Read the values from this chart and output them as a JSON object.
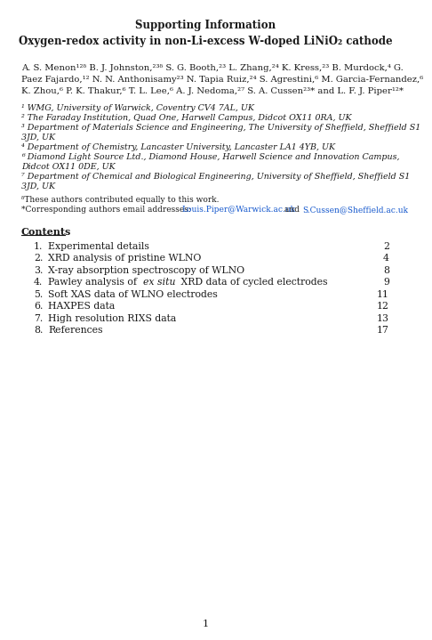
{
  "title": "Supporting Information",
  "subtitle": "Oxygen-redox activity in non-Li-excess W-doped LiNiO₂ cathode",
  "author_line1": "A. S. Menon¹²ᵟ B. J. Johnston,²³ᵟ S. G. Booth,²³ L. Zhang,²⁴ K. Kress,²³ B. Murdock,⁴ G.",
  "author_line2": "Paez Fajardo,¹² N. N. Anthonisamy²³ N. Tapia Ruiz,²⁴ S. Agrestini,⁶ M. Garcia-Fernandez,⁶",
  "author_line3": "K. Zhou,⁶ P. K. Thakur,⁶ T. L. Lee,⁶ A. J. Nedoma,²⁷ S. A. Cussen²³* and L. F. J. Piper¹²*",
  "aff1": "¹ WMG, University of Warwick, Coventry CV4 7AL, UK",
  "aff2": "² The Faraday Institution, Quad One, Harwell Campus, Didcot OX11 0RA, UK",
  "aff3a": "³ Department of Materials Science and Engineering, The University of Sheffield, Sheffield S1",
  "aff3b": "3JD, UK",
  "aff4": "⁴ Department of Chemistry, Lancaster University, Lancaster LA1 4YB, UK",
  "aff6a": "⁶ Diamond Light Source Ltd., Diamond House, Harwell Science and Innovation Campus,",
  "aff6b": "Didcot OX11 0DE, UK",
  "aff7a": "⁷ Department of Chemical and Biological Engineering, University of Sheffield, Sheffield S1",
  "aff7b": "3JD, UK",
  "footnote1": "ᵟThese authors contributed equally to this work.",
  "footnote2_pre": "*Corresponding authors email addresses: ",
  "footnote2_link1": "Louis.Piper@Warwick.ac.uk",
  "footnote2_mid": " and ",
  "footnote2_link2": "S.Cussen@Sheffield.ac.uk",
  "contents_title": "Contents",
  "contents_items": [
    [
      "1.",
      "Experimental details",
      "2"
    ],
    [
      "2.",
      "XRD analysis of pristine WLNO",
      "4"
    ],
    [
      "3.",
      "X-ray absorption spectroscopy of WLNO",
      "8"
    ],
    [
      "4.",
      "Pawley analysis of |ex situ| XRD data of cycled electrodes",
      "9"
    ],
    [
      "5.",
      "Soft XAS data of WLNO electrodes",
      "11"
    ],
    [
      "6.",
      "HAXPES data",
      "12"
    ],
    [
      "7.",
      "High resolution RIXS data",
      "13"
    ],
    [
      "8.",
      "References",
      "17"
    ]
  ],
  "page_number": "1",
  "bg_color": "#ffffff",
  "text_color": "#1a1a1a",
  "link_color": "#1155cc",
  "title_fontsize": 8.5,
  "subtitle_fontsize": 8.5,
  "author_fontsize": 7.2,
  "aff_fontsize": 6.8,
  "footnote_fontsize": 6.5,
  "contents_title_fontsize": 8.0,
  "contents_item_fontsize": 7.8
}
